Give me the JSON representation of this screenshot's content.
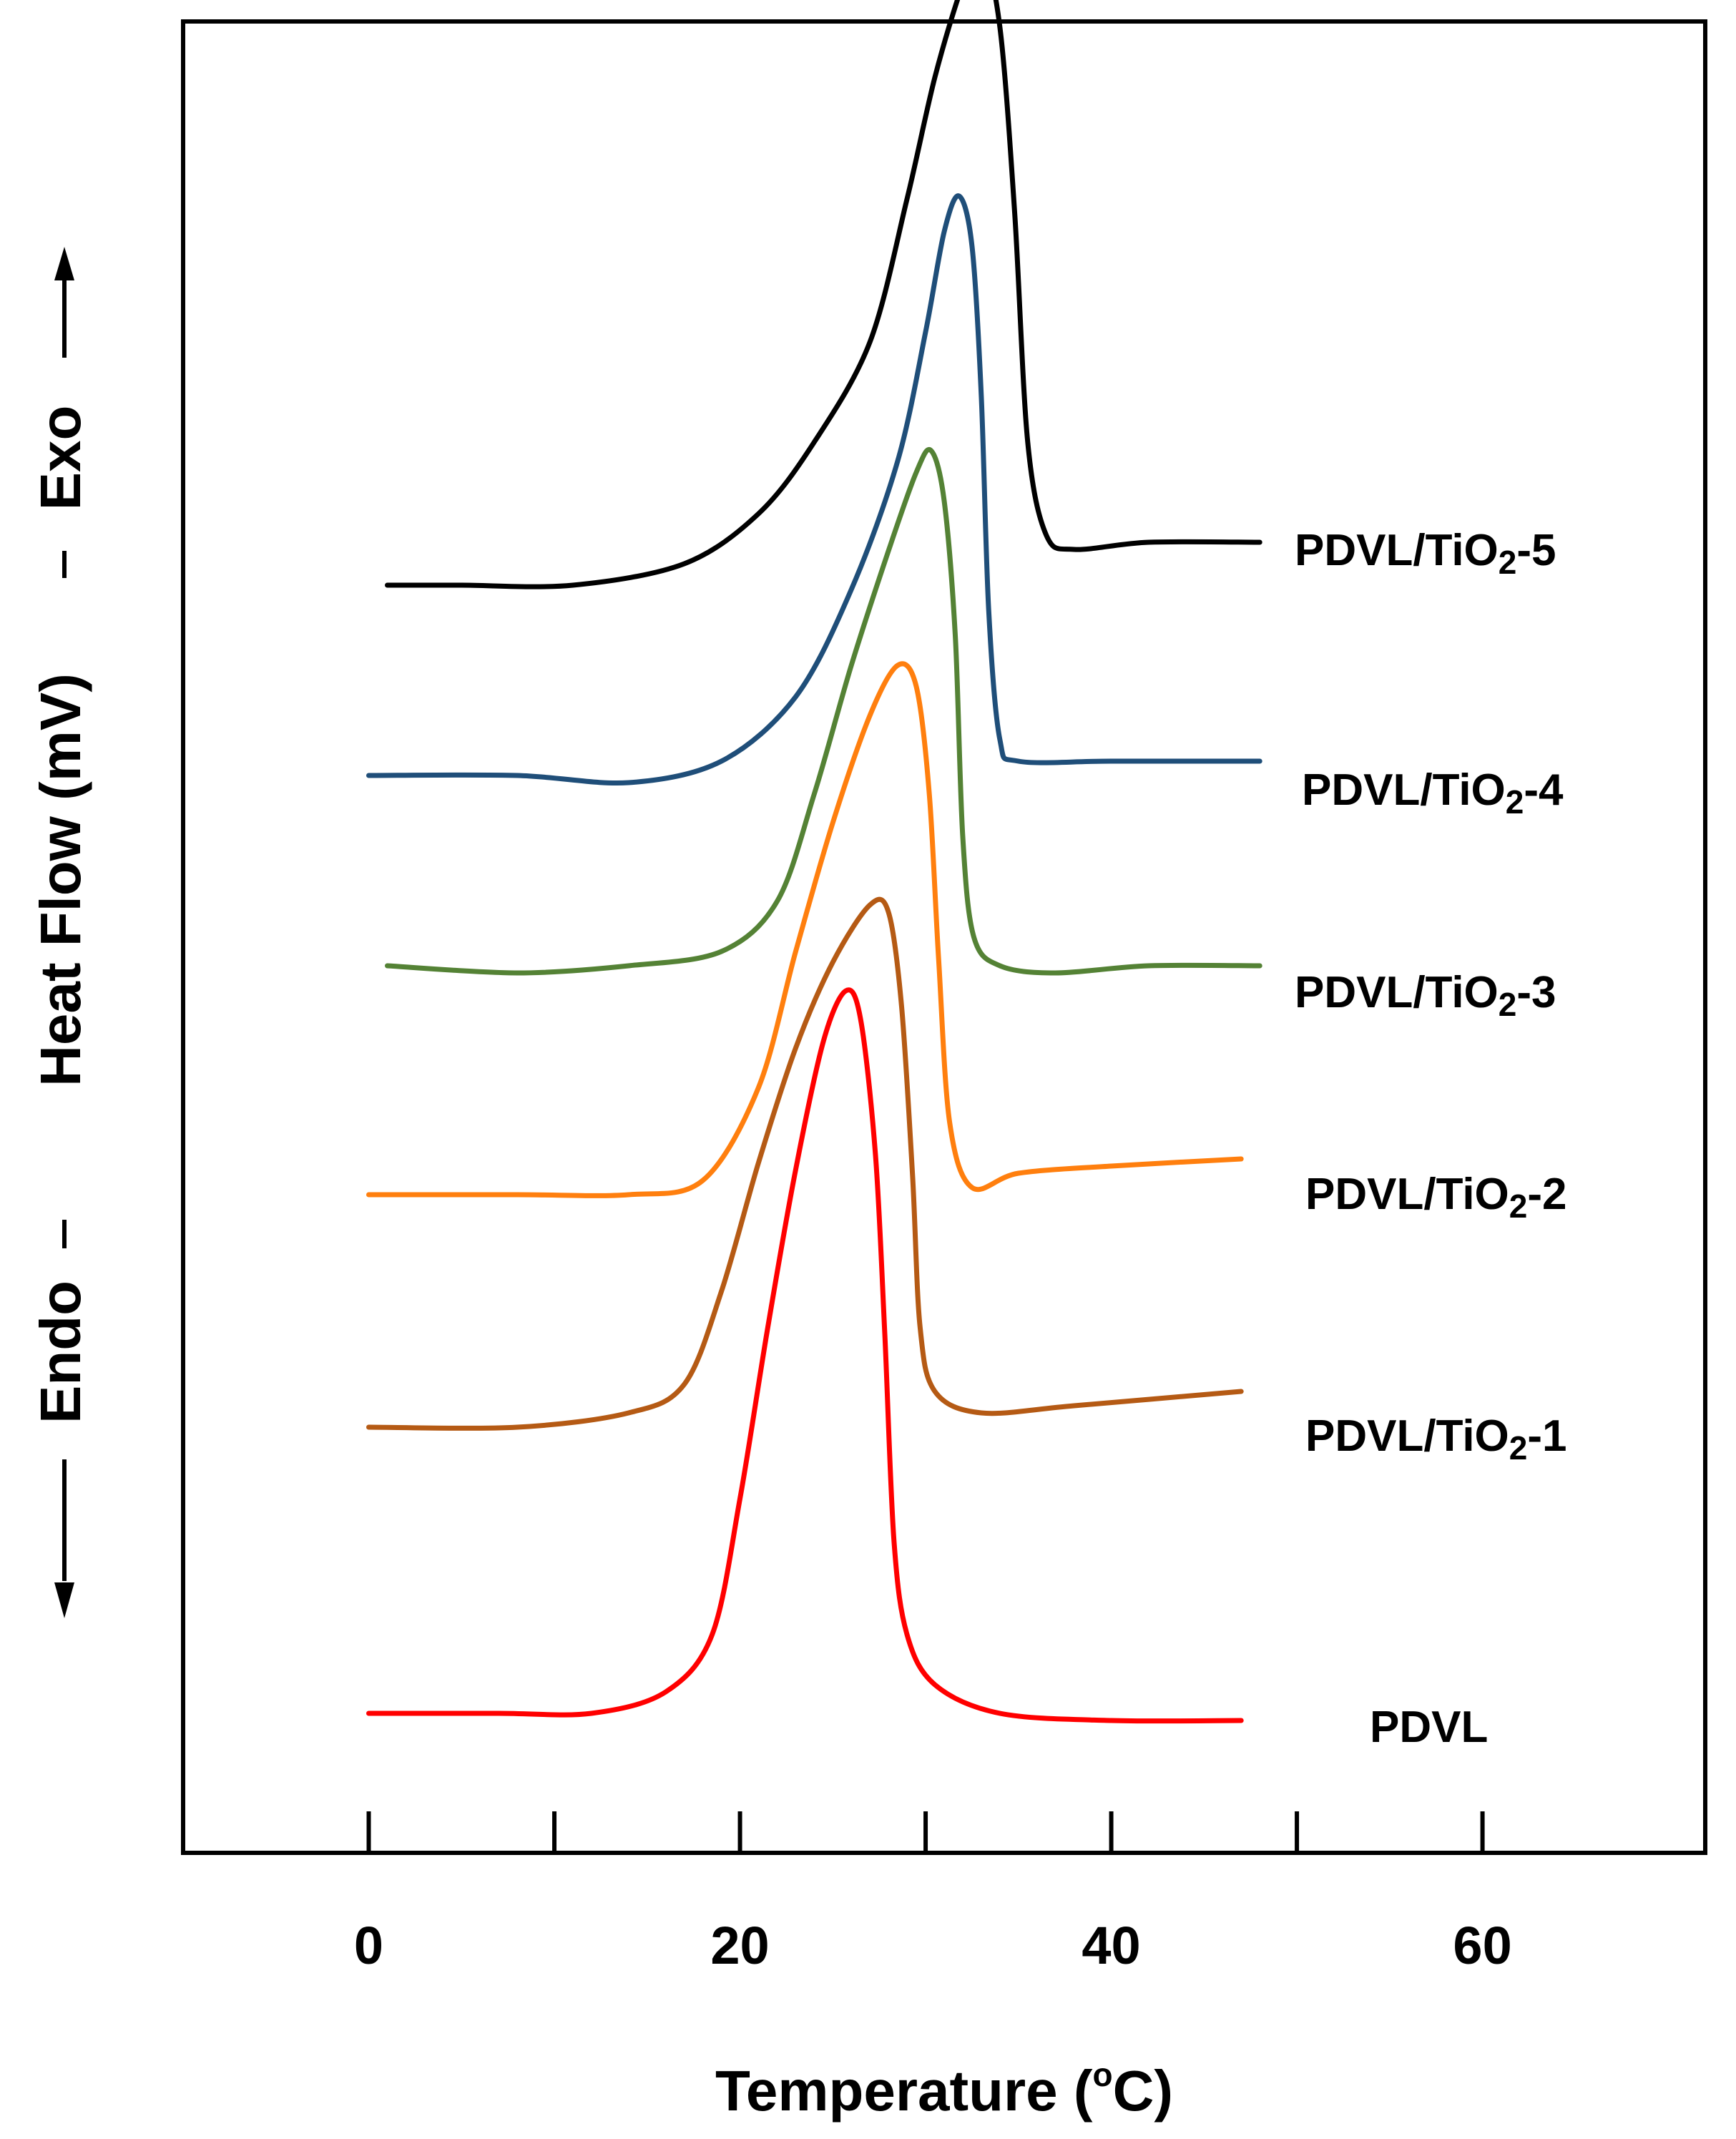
{
  "chart_data": {
    "type": "line",
    "title": "",
    "xlabel_main": "Temperature (",
    "xlabel_sup": "o",
    "xlabel_unit": "C)",
    "ylabel": "Heat Flow (mV)",
    "y_exo_label": "Exo",
    "y_endo_label": "Endo",
    "xlim": [
      -10,
      72
    ],
    "x_ticks": [
      0,
      10,
      20,
      30,
      40,
      50,
      60
    ],
    "x_tick_labels": [
      "0",
      "20",
      "40",
      "60"
    ],
    "x_tick_label_values": [
      0,
      20,
      40,
      60
    ],
    "y_ticks_shown": false,
    "grid": false,
    "legend": "inline labels at right of each curve",
    "colors": {
      "PDVL/TiO2-5": "#000000",
      "PDVL/TiO2-4": "#1f4e79",
      "PDVL/TiO2-3": "#548235",
      "PDVL/TiO2-2": "#ff7f0e",
      "PDVL/TiO2-1": "#b55a14",
      "PDVL": "#ff0000"
    },
    "series": [
      {
        "name": "PDVL/TiO2-5",
        "label_main": "PDVL/TiO",
        "label_sub": "2",
        "label_suffix": "-5",
        "color": "#000000",
        "points": [
          [
            1,
            0.2
          ],
          [
            5,
            0.2
          ],
          [
            11,
            0.2
          ],
          [
            17,
            0.5
          ],
          [
            21,
            1.2
          ],
          [
            24,
            2.2
          ],
          [
            27,
            3.6
          ],
          [
            29,
            5.6
          ],
          [
            30.5,
            7.3
          ],
          [
            32,
            8.6
          ],
          [
            33,
            9.1
          ],
          [
            34,
            8.0
          ],
          [
            34.8,
            5.4
          ],
          [
            35.5,
            2.2
          ],
          [
            36.5,
            0.9
          ],
          [
            38,
            0.7
          ],
          [
            42,
            0.8
          ],
          [
            48,
            0.8
          ]
        ]
      },
      {
        "name": "PDVL/TiO2-4",
        "label_main": "PDVL/TiO",
        "label_sub": "2",
        "label_suffix": "-4",
        "color": "#1f4e79",
        "points": [
          [
            0,
            0.2
          ],
          [
            8,
            0.2
          ],
          [
            14,
            0.1
          ],
          [
            19,
            0.4
          ],
          [
            23,
            1.3
          ],
          [
            26,
            2.8
          ],
          [
            28.5,
            4.6
          ],
          [
            30,
            6.4
          ],
          [
            31,
            7.8
          ],
          [
            31.8,
            8.3
          ],
          [
            32.5,
            7.6
          ],
          [
            33,
            5.5
          ],
          [
            33.4,
            2.5
          ],
          [
            34,
            0.7
          ],
          [
            35,
            0.4
          ],
          [
            40,
            0.4
          ],
          [
            48,
            0.4
          ]
        ]
      },
      {
        "name": "PDVL/TiO2-3",
        "label_main": "PDVL/TiO",
        "label_sub": "2",
        "label_suffix": "-3",
        "color": "#548235",
        "points": [
          [
            1,
            0.4
          ],
          [
            8,
            0.3
          ],
          [
            14,
            0.4
          ],
          [
            19,
            0.6
          ],
          [
            22,
            1.3
          ],
          [
            24,
            2.8
          ],
          [
            26,
            4.6
          ],
          [
            28,
            6.2
          ],
          [
            29.5,
            7.3
          ],
          [
            30.3,
            7.6
          ],
          [
            31,
            6.9
          ],
          [
            31.6,
            5.0
          ],
          [
            32,
            2.2
          ],
          [
            32.6,
            0.8
          ],
          [
            34,
            0.4
          ],
          [
            37,
            0.3
          ],
          [
            42,
            0.4
          ],
          [
            48,
            0.4
          ]
        ]
      },
      {
        "name": "PDVL/TiO2-2",
        "label_main": "PDVL/TiO",
        "label_sub": "2",
        "label_suffix": "-2",
        "color": "#ff7f0e",
        "points": [
          [
            0,
            0.2
          ],
          [
            8,
            0.2
          ],
          [
            14,
            0.2
          ],
          [
            18,
            0.4
          ],
          [
            21,
            1.7
          ],
          [
            23,
            3.6
          ],
          [
            25,
            5.4
          ],
          [
            27,
            6.9
          ],
          [
            28.5,
            7.6
          ],
          [
            29.5,
            7.3
          ],
          [
            30.2,
            5.8
          ],
          [
            30.7,
            3.5
          ],
          [
            31.3,
            1.2
          ],
          [
            32.5,
            0.3
          ],
          [
            35,
            0.5
          ],
          [
            40,
            0.6
          ],
          [
            47,
            0.7
          ]
        ]
      },
      {
        "name": "PDVL/TiO2-1",
        "label_main": "PDVL/TiO",
        "label_sub": "2",
        "label_suffix": "-1",
        "color": "#b55a14",
        "points": [
          [
            0,
            0.3
          ],
          [
            8,
            0.3
          ],
          [
            14,
            0.5
          ],
          [
            17,
            0.9
          ],
          [
            19,
            2.2
          ],
          [
            21,
            4.0
          ],
          [
            23,
            5.6
          ],
          [
            25,
            6.8
          ],
          [
            27,
            7.6
          ],
          [
            28,
            7.5
          ],
          [
            28.7,
            6.2
          ],
          [
            29.3,
            3.8
          ],
          [
            29.7,
            1.7
          ],
          [
            30.5,
            0.8
          ],
          [
            33,
            0.5
          ],
          [
            38,
            0.6
          ],
          [
            47,
            0.8
          ]
        ]
      },
      {
        "name": "PDVL",
        "label_main": "PDVL",
        "label_sub": "",
        "label_suffix": "",
        "color": "#ff0000",
        "points": [
          [
            0,
            0.2
          ],
          [
            7,
            0.2
          ],
          [
            12,
            0.2
          ],
          [
            16,
            0.5
          ],
          [
            18.5,
            1.3
          ],
          [
            20,
            3.2
          ],
          [
            21.5,
            5.6
          ],
          [
            23,
            7.8
          ],
          [
            24.5,
            9.6
          ],
          [
            25.7,
            10.3
          ],
          [
            26.5,
            9.9
          ],
          [
            27.3,
            8.0
          ],
          [
            27.8,
            5.5
          ],
          [
            28.3,
            2.6
          ],
          [
            29,
            1.3
          ],
          [
            30.5,
            0.6
          ],
          [
            34,
            0.2
          ],
          [
            40,
            0.1
          ],
          [
            47,
            0.1
          ]
        ]
      }
    ]
  }
}
